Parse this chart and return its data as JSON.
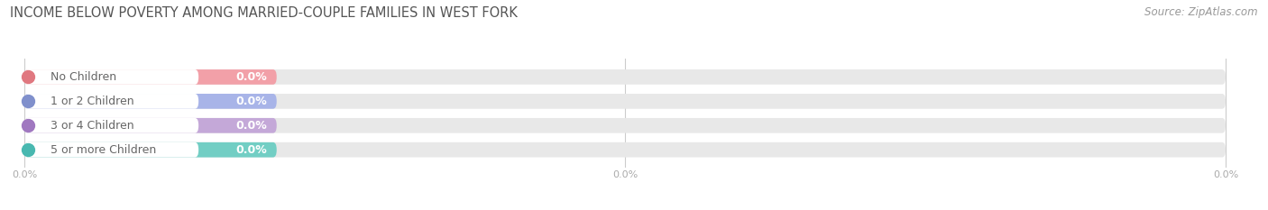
{
  "title": "INCOME BELOW POVERTY AMONG MARRIED-COUPLE FAMILIES IN WEST FORK",
  "source": "Source: ZipAtlas.com",
  "categories": [
    "No Children",
    "1 or 2 Children",
    "3 or 4 Children",
    "5 or more Children"
  ],
  "values": [
    0.0,
    0.0,
    0.0,
    0.0
  ],
  "bar_colors": [
    "#f2a0a8",
    "#a8b4e8",
    "#c4a8d8",
    "#72cec4"
  ],
  "dot_colors": [
    "#e07880",
    "#8090cc",
    "#a078c0",
    "#48b8b0"
  ],
  "background_color": "#ffffff",
  "bar_bg_color": "#e8e8e8",
  "white_label_bg": "#ffffff",
  "title_fontsize": 10.5,
  "source_fontsize": 8.5,
  "cat_label_fontsize": 9,
  "val_label_fontsize": 9,
  "label_text_color": "#666666",
  "value_label_color": "#ffffff",
  "grid_color": "#cccccc",
  "tick_label_color": "#aaaaaa",
  "tick_label_fontsize": 8
}
